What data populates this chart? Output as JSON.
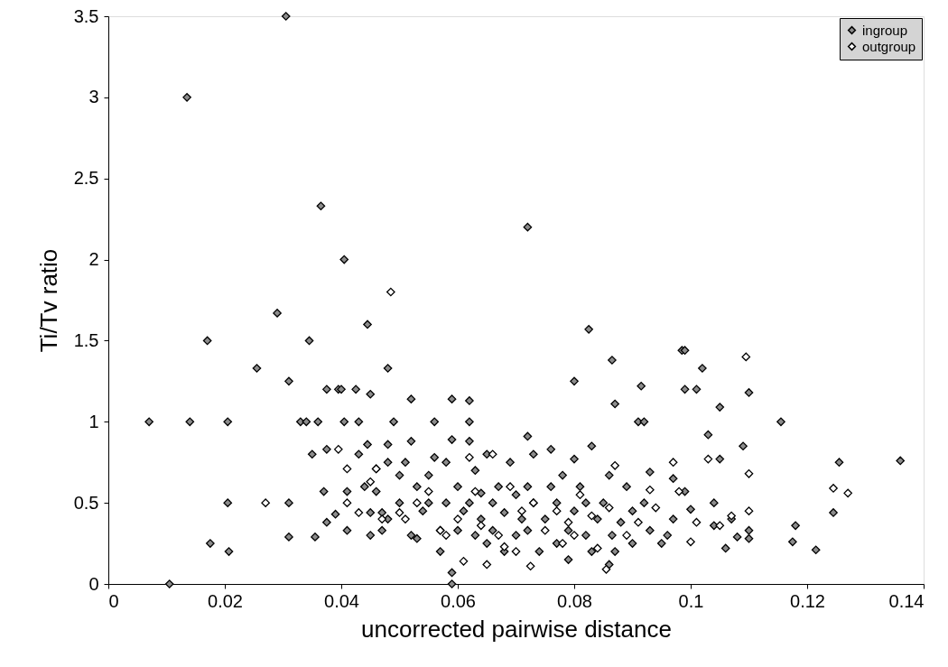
{
  "chart_data": {
    "type": "scatter",
    "xlabel": "uncorrected pairwise distance",
    "ylabel": "Ti/Tv ratio",
    "xlim": [
      0,
      0.14
    ],
    "xticks": [
      0,
      0.02,
      0.04,
      0.06,
      0.08,
      0.1,
      0.12,
      0.14
    ],
    "ylim": [
      0,
      3.5
    ],
    "yticks": [
      0,
      0.5,
      1,
      1.5,
      2,
      2.5,
      3,
      3.5
    ],
    "grid": false,
    "legend": "top right",
    "marker": "diamond",
    "series": [
      {
        "name": "ingroup",
        "color": "#8c8c8c",
        "x": [
          0.007,
          0.0105,
          0.0135,
          0.014,
          0.017,
          0.0175,
          0.0205,
          0.0205,
          0.0207,
          0.0255,
          0.029,
          0.0305,
          0.031,
          0.031,
          0.031,
          0.033,
          0.034,
          0.0345,
          0.035,
          0.0355,
          0.036,
          0.0365,
          0.037,
          0.0375,
          0.0375,
          0.0375,
          0.039,
          0.0395,
          0.04,
          0.0405,
          0.0405,
          0.041,
          0.041,
          0.0425,
          0.043,
          0.043,
          0.044,
          0.0445,
          0.0445,
          0.045,
          0.045,
          0.045,
          0.046,
          0.046,
          0.047,
          0.047,
          0.048,
          0.048,
          0.048,
          0.048,
          0.049,
          0.05,
          0.05,
          0.051,
          0.052,
          0.052,
          0.052,
          0.053,
          0.053,
          0.054,
          0.055,
          0.055,
          0.056,
          0.056,
          0.057,
          0.057,
          0.058,
          0.058,
          0.059,
          0.059,
          0.059,
          0.059,
          0.06,
          0.06,
          0.061,
          0.062,
          0.062,
          0.062,
          0.062,
          0.063,
          0.063,
          0.064,
          0.064,
          0.065,
          0.065,
          0.066,
          0.066,
          0.067,
          0.068,
          0.068,
          0.069,
          0.07,
          0.07,
          0.071,
          0.072,
          0.072,
          0.072,
          0.072,
          0.073,
          0.073,
          0.074,
          0.075,
          0.076,
          0.076,
          0.077,
          0.077,
          0.078,
          0.079,
          0.079,
          0.08,
          0.08,
          0.08,
          0.081,
          0.082,
          0.082,
          0.0825,
          0.083,
          0.083,
          0.084,
          0.085,
          0.086,
          0.0865,
          0.0865,
          0.086,
          0.087,
          0.087,
          0.088,
          0.089,
          0.09,
          0.09,
          0.091,
          0.0915,
          0.092,
          0.092,
          0.093,
          0.093,
          0.095,
          0.096,
          0.097,
          0.097,
          0.0985,
          0.099,
          0.099,
          0.099,
          0.1,
          0.101,
          0.102,
          0.103,
          0.104,
          0.104,
          0.105,
          0.105,
          0.106,
          0.107,
          0.108,
          0.109,
          0.11,
          0.11,
          0.11,
          0.1155,
          0.1175,
          0.118,
          0.1215,
          0.1245,
          0.1255,
          0.136
        ],
        "values": [
          1.0,
          0,
          3.0,
          1.0,
          1.5,
          0.25,
          1.0,
          0.5,
          0.2,
          1.33,
          1.67,
          3.5,
          1.25,
          0.5,
          0.29,
          1.0,
          1.0,
          1.5,
          0.8,
          0.29,
          1.0,
          2.33,
          0.57,
          1.2,
          0.83,
          0.38,
          0.43,
          1.2,
          1.2,
          2.0,
          1.0,
          0.57,
          0.33,
          1.2,
          1.0,
          0.8,
          0.6,
          1.6,
          0.86,
          1.17,
          0.44,
          0.3,
          0.71,
          0.57,
          0.33,
          0.44,
          1.33,
          0.86,
          0.75,
          0.4,
          1.0,
          0.67,
          0.5,
          0.75,
          1.14,
          0.3,
          0.88,
          0.6,
          0.28,
          0.45,
          0.67,
          0.5,
          1.0,
          0.78,
          0.33,
          0.2,
          0.75,
          0.5,
          0.89,
          1.14,
          0.07,
          0.0,
          0.33,
          0.6,
          0.45,
          1.13,
          1.0,
          0.88,
          0.5,
          0.3,
          0.7,
          0.4,
          0.56,
          0.25,
          0.8,
          0.5,
          0.33,
          0.6,
          0.2,
          0.44,
          0.75,
          0.3,
          0.55,
          0.4,
          2.2,
          0.91,
          0.6,
          0.33,
          0.5,
          0.8,
          0.2,
          0.4,
          0.83,
          0.6,
          0.25,
          0.5,
          0.67,
          0.33,
          0.15,
          0.77,
          1.25,
          0.45,
          0.6,
          0.3,
          0.5,
          1.57,
          0.85,
          0.2,
          0.4,
          0.5,
          0.67,
          1.38,
          0.3,
          0.12,
          1.11,
          0.2,
          0.38,
          0.6,
          0.25,
          0.45,
          1.0,
          1.22,
          1.0,
          0.5,
          0.69,
          0.33,
          0.25,
          0.3,
          0.65,
          0.4,
          1.44,
          1.2,
          1.44,
          0.57,
          0.46,
          1.2,
          1.33,
          0.92,
          0.5,
          0.36,
          1.09,
          0.77,
          0.22,
          0.4,
          0.29,
          0.85,
          1.18,
          0.33,
          0.28,
          1.0,
          0.26,
          0.36,
          0.21,
          0.44,
          0.75,
          0.76
        ]
      },
      {
        "name": "outgroup",
        "color": "#ffffff",
        "x": [
          0.027,
          0.0395,
          0.041,
          0.041,
          0.043,
          0.045,
          0.046,
          0.047,
          0.0485,
          0.05,
          0.051,
          0.053,
          0.055,
          0.057,
          0.058,
          0.06,
          0.061,
          0.062,
          0.063,
          0.064,
          0.065,
          0.066,
          0.067,
          0.068,
          0.069,
          0.07,
          0.071,
          0.0725,
          0.073,
          0.075,
          0.077,
          0.078,
          0.079,
          0.08,
          0.081,
          0.083,
          0.084,
          0.0855,
          0.086,
          0.087,
          0.089,
          0.091,
          0.093,
          0.094,
          0.097,
          0.098,
          0.1,
          0.101,
          0.103,
          0.105,
          0.107,
          0.1095,
          0.11,
          0.11,
          0.1245,
          0.127
        ],
        "values": [
          0.5,
          0.83,
          0.71,
          0.5,
          0.44,
          0.63,
          0.71,
          0.4,
          1.8,
          0.44,
          0.4,
          0.5,
          0.57,
          0.33,
          0.3,
          0.4,
          0.14,
          0.78,
          0.57,
          0.36,
          0.12,
          0.8,
          0.3,
          0.23,
          0.6,
          0.2,
          0.45,
          0.11,
          0.5,
          0.33,
          0.45,
          0.25,
          0.38,
          0.3,
          0.55,
          0.42,
          0.22,
          0.09,
          0.47,
          0.73,
          0.3,
          0.38,
          0.58,
          0.47,
          0.75,
          0.57,
          0.26,
          0.38,
          0.77,
          0.36,
          0.42,
          1.4,
          0.68,
          0.45,
          0.59,
          0.56
        ]
      }
    ]
  }
}
